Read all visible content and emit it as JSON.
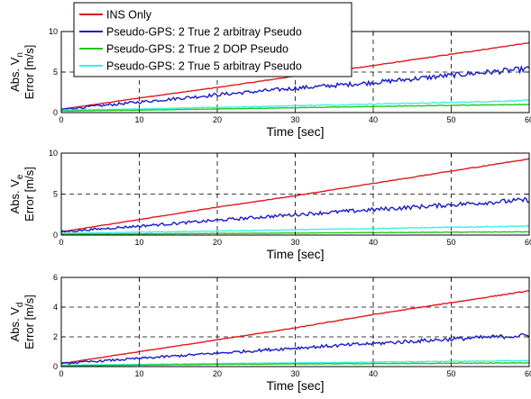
{
  "chart_data": [
    {
      "type": "line",
      "xlabel": "Time [sec]",
      "ylabel_main": "Abs.",
      "ylabel_var": "V",
      "ylabel_sub": "n",
      "ylabel_unit": "Error [m/s]",
      "xlim": [
        0,
        60
      ],
      "ylim": [
        0,
        10
      ],
      "xticks": [
        0,
        10,
        20,
        30,
        40,
        50,
        60
      ],
      "yticks": [
        0,
        5,
        10
      ],
      "grid": true,
      "legend": {
        "placement": "top-left",
        "entries": [
          {
            "name": "INS Only",
            "color": "#e0181a"
          },
          {
            "name": "Pseudo-GPS: 2 True 2 arbitray Pseudo",
            "color": "#1a1acc"
          },
          {
            "name": "Pseudo-GPS: 2 True 2 DOP Pseudo",
            "color": "#1ec81e"
          },
          {
            "name": "Pseudo-GPS: 2 True 5 arbitray Pseudo",
            "color": "#3cf0e6"
          }
        ]
      },
      "series": [
        {
          "name": "INS Only",
          "color": "#e0181a",
          "x": [
            0,
            10,
            20,
            30,
            40,
            50,
            60
          ],
          "y": [
            0.4,
            1.8,
            3.1,
            4.5,
            5.8,
            7.2,
            8.6
          ]
        },
        {
          "name": "Pseudo-GPS: 2 True 2 arbitray Pseudo",
          "color": "#1a1acc",
          "x": [
            0,
            10,
            20,
            30,
            40,
            50,
            60
          ],
          "y": [
            0.4,
            1.3,
            2.2,
            3.0,
            3.7,
            4.6,
            5.4
          ]
        },
        {
          "name": "Pseudo-GPS: 2 True 2 DOP Pseudo",
          "color": "#1ec81e",
          "x": [
            0,
            10,
            20,
            30,
            40,
            50,
            60
          ],
          "y": [
            0.2,
            0.3,
            0.45,
            0.6,
            0.75,
            0.9,
            1.0
          ]
        },
        {
          "name": "Pseudo-GPS: 2 True 5 arbitray Pseudo",
          "color": "#3cf0e6",
          "x": [
            0,
            10,
            20,
            30,
            40,
            50,
            60
          ],
          "y": [
            0.3,
            0.45,
            0.65,
            0.85,
            1.05,
            1.25,
            1.5
          ]
        }
      ]
    },
    {
      "type": "line",
      "xlabel": "Time [sec]",
      "ylabel_main": "Abs.",
      "ylabel_var": "V",
      "ylabel_sub": "e",
      "ylabel_unit": "Error [m/s]",
      "xlim": [
        0,
        60
      ],
      "ylim": [
        0,
        10
      ],
      "xticks": [
        0,
        10,
        20,
        30,
        40,
        50,
        60
      ],
      "yticks": [
        0,
        5,
        10
      ],
      "grid": true,
      "series": [
        {
          "name": "INS Only",
          "color": "#e0181a",
          "x": [
            0,
            10,
            20,
            30,
            40,
            50,
            60
          ],
          "y": [
            0.4,
            1.9,
            3.4,
            4.8,
            6.3,
            7.8,
            9.3
          ]
        },
        {
          "name": "Pseudo-GPS: 2 True 2 arbitray Pseudo",
          "color": "#1a1acc",
          "x": [
            0,
            10,
            20,
            30,
            40,
            50,
            60
          ],
          "y": [
            0.4,
            1.1,
            1.8,
            2.5,
            3.1,
            3.7,
            4.3
          ]
        },
        {
          "name": "Pseudo-GPS: 2 True 2 DOP Pseudo",
          "color": "#1ec81e",
          "x": [
            0,
            10,
            20,
            30,
            40,
            50,
            60
          ],
          "y": [
            0.1,
            0.15,
            0.2,
            0.25,
            0.3,
            0.35,
            0.4
          ]
        },
        {
          "name": "Pseudo-GPS: 2 True 5 arbitray Pseudo",
          "color": "#3cf0e6",
          "x": [
            0,
            10,
            20,
            30,
            40,
            50,
            60
          ],
          "y": [
            0.2,
            0.35,
            0.5,
            0.65,
            0.8,
            0.95,
            1.1
          ]
        }
      ]
    },
    {
      "type": "line",
      "xlabel": "Time [sec]",
      "ylabel_main": "Abs.",
      "ylabel_var": "V",
      "ylabel_sub": "d",
      "ylabel_unit": "Error [m/s]",
      "xlim": [
        0,
        60
      ],
      "ylim": [
        0,
        6
      ],
      "xticks": [
        0,
        10,
        20,
        30,
        40,
        50,
        60
      ],
      "yticks": [
        0,
        2,
        4,
        6
      ],
      "grid": true,
      "series": [
        {
          "name": "INS Only",
          "color": "#e0181a",
          "x": [
            0,
            10,
            20,
            30,
            40,
            50,
            60
          ],
          "y": [
            0.2,
            1.0,
            1.8,
            2.6,
            3.5,
            4.3,
            5.1
          ]
        },
        {
          "name": "Pseudo-GPS: 2 True 2 arbitray Pseudo",
          "color": "#1a1acc",
          "x": [
            0,
            10,
            20,
            30,
            40,
            50,
            60
          ],
          "y": [
            0.2,
            0.55,
            0.9,
            1.25,
            1.55,
            1.85,
            2.1
          ]
        },
        {
          "name": "Pseudo-GPS: 2 True 2 DOP Pseudo",
          "color": "#1ec81e",
          "x": [
            0,
            10,
            20,
            30,
            40,
            50,
            60
          ],
          "y": [
            0.05,
            0.1,
            0.15,
            0.18,
            0.2,
            0.22,
            0.25
          ]
        },
        {
          "name": "Pseudo-GPS: 2 True 5 arbitray Pseudo",
          "color": "#3cf0e6",
          "x": [
            0,
            10,
            20,
            30,
            40,
            50,
            60
          ],
          "y": [
            0.1,
            0.15,
            0.2,
            0.25,
            0.3,
            0.35,
            0.4
          ]
        }
      ]
    }
  ]
}
